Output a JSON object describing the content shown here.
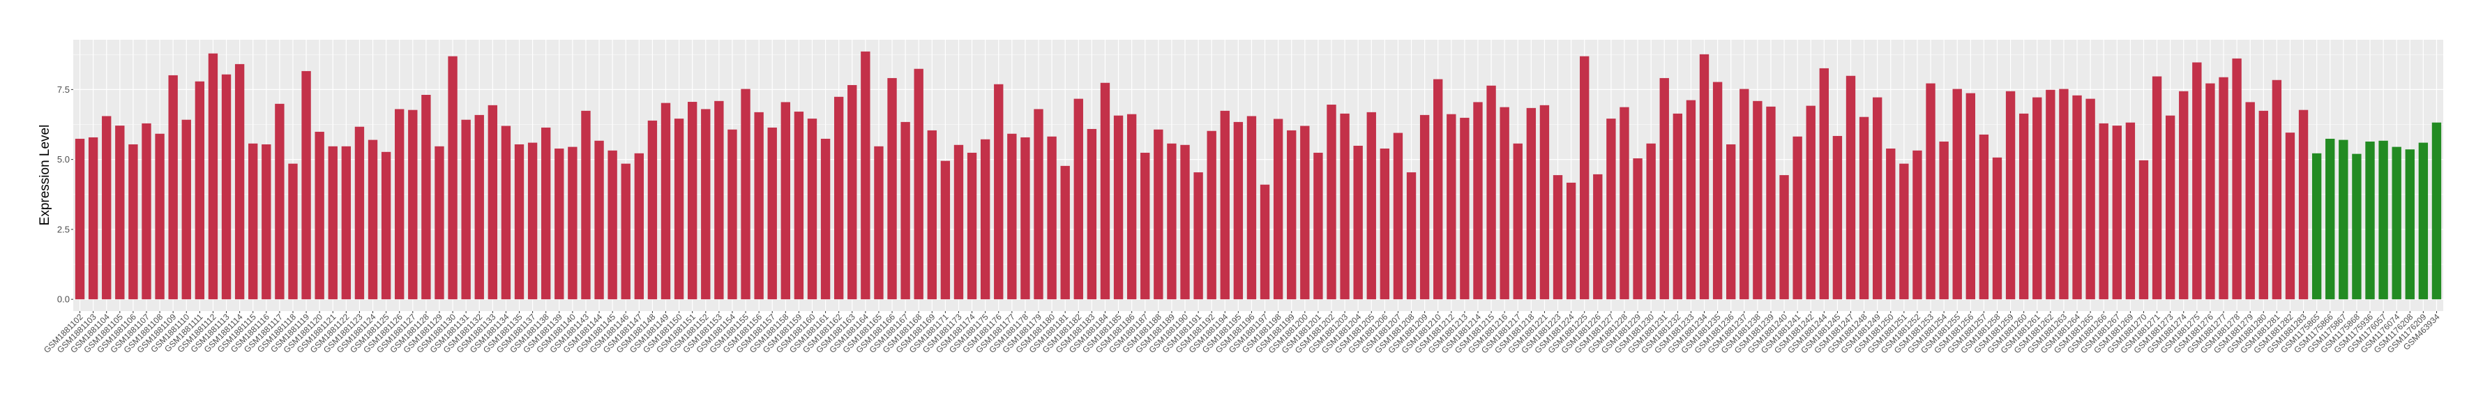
{
  "chart_data": {
    "type": "bar",
    "title": "",
    "xlabel": "",
    "ylabel": "Expression Level",
    "ylim": [
      -0.42,
      9.28
    ],
    "yticks": [
      0.0,
      2.5,
      5.0,
      7.5
    ],
    "ytick_labels": [
      "0.0",
      "2.5",
      "5.0",
      "7.5"
    ],
    "grid": true,
    "legend": "none",
    "colors": {
      "group1": "#C33149",
      "group2": "#228B22",
      "panel": "#EBEBEB",
      "gridline": "#FFFFFF"
    },
    "categories": [
      "GSM1881102",
      "GSM1881103",
      "GSM1881104",
      "GSM1881105",
      "GSM1881106",
      "GSM1881107",
      "GSM1881108",
      "GSM1881109",
      "GSM1881110",
      "GSM1881111",
      "GSM1881112",
      "GSM1881113",
      "GSM1881114",
      "GSM1881115",
      "GSM1881116",
      "GSM1881117",
      "GSM1881118",
      "GSM1881119",
      "GSM1881120",
      "GSM1881121",
      "GSM1881122",
      "GSM1881123",
      "GSM1881124",
      "GSM1881125",
      "GSM1881126",
      "GSM1881127",
      "GSM1881128",
      "GSM1881129",
      "GSM1881130",
      "GSM1881131",
      "GSM1881132",
      "GSM1881133",
      "GSM1881134",
      "GSM1881135",
      "GSM1881137",
      "GSM1881138",
      "GSM1881139",
      "GSM1881140",
      "GSM1881143",
      "GSM1881144",
      "GSM1881145",
      "GSM1881146",
      "GSM1881147",
      "GSM1881148",
      "GSM1881149",
      "GSM1881150",
      "GSM1881151",
      "GSM1881152",
      "GSM1881153",
      "GSM1881154",
      "GSM1881155",
      "GSM1881156",
      "GSM1881157",
      "GSM1881158",
      "GSM1881159",
      "GSM1881160",
      "GSM1881161",
      "GSM1881162",
      "GSM1881163",
      "GSM1881164",
      "GSM1881165",
      "GSM1881166",
      "GSM1881167",
      "GSM1881168",
      "GSM1881169",
      "GSM1881171",
      "GSM1881173",
      "GSM1881174",
      "GSM1881175",
      "GSM1881176",
      "GSM1881177",
      "GSM1881178",
      "GSM1881179",
      "GSM1881180",
      "GSM1881181",
      "GSM1881182",
      "GSM1881183",
      "GSM1881184",
      "GSM1881185",
      "GSM1881186",
      "GSM1881187",
      "GSM1881188",
      "GSM1881189",
      "GSM1881190",
      "GSM1881191",
      "GSM1881192",
      "GSM1881194",
      "GSM1881195",
      "GSM1881196",
      "GSM1881197",
      "GSM1881198",
      "GSM1881199",
      "GSM1881200",
      "GSM1881201",
      "GSM1881202",
      "GSM1881203",
      "GSM1881204",
      "GSM1881205",
      "GSM1881206",
      "GSM1881207",
      "GSM1881208",
      "GSM1881209",
      "GSM1881210",
      "GSM1881212",
      "GSM1881213",
      "GSM1881214",
      "GSM1881215",
      "GSM1881216",
      "GSM1881217",
      "GSM1881218",
      "GSM1881221",
      "GSM1881223",
      "GSM1881224",
      "GSM1881225",
      "GSM1881226",
      "GSM1881227",
      "GSM1881228",
      "GSM1881229",
      "GSM1881230",
      "GSM1881231",
      "GSM1881232",
      "GSM1881233",
      "GSM1881234",
      "GSM1881235",
      "GSM1881236",
      "GSM1881237",
      "GSM1881238",
      "GSM1881239",
      "GSM1881240",
      "GSM1881241",
      "GSM1881242",
      "GSM1881244",
      "GSM1881245",
      "GSM1881247",
      "GSM1881248",
      "GSM1881249",
      "GSM1881250",
      "GSM1881251",
      "GSM1881252",
      "GSM1881253",
      "GSM1881254",
      "GSM1881255",
      "GSM1881256",
      "GSM1881257",
      "GSM1881258",
      "GSM1881259",
      "GSM1881260",
      "GSM1881261",
      "GSM1881262",
      "GSM1881263",
      "GSM1881264",
      "GSM1881265",
      "GSM1881266",
      "GSM1881267",
      "GSM1881269",
      "GSM1881270",
      "GSM1881271",
      "GSM1881273",
      "GSM1881274",
      "GSM1881275",
      "GSM1881276",
      "GSM1881277",
      "GSM1881278",
      "GSM1881279",
      "GSM1881280",
      "GSM1881281",
      "GSM1881282",
      "GSM1881283",
      "GSM1175865",
      "GSM1175866",
      "GSM1175867",
      "GSM1175868",
      "GSM1175936",
      "GSM1176057",
      "GSM1176074",
      "GSM1176208",
      "GSM1176209",
      "GSM463934"
    ],
    "values": [
      5.74,
      5.79,
      6.55,
      6.21,
      5.54,
      6.29,
      5.92,
      8.01,
      6.42,
      7.79,
      8.79,
      8.04,
      8.41,
      5.57,
      5.54,
      6.99,
      4.85,
      8.16,
      5.99,
      5.47,
      5.47,
      6.17,
      5.7,
      5.27,
      6.8,
      6.77,
      7.31,
      5.47,
      8.69,
      6.42,
      6.59,
      6.94,
      6.2,
      5.54,
      5.6,
      6.14,
      5.39,
      5.45,
      6.74,
      5.67,
      5.32,
      4.85,
      5.22,
      6.39,
      7.02,
      6.46,
      7.06,
      6.8,
      7.09,
      6.07,
      7.52,
      6.69,
      6.14,
      7.05,
      6.71,
      6.46,
      5.74,
      7.24,
      7.66,
      8.86,
      5.47,
      7.91,
      6.34,
      8.24,
      6.04,
      4.95,
      5.52,
      5.24,
      5.72,
      7.69,
      5.92,
      5.79,
      6.8,
      5.82,
      4.77,
      7.17,
      6.09,
      7.74,
      6.57,
      6.62,
      5.24,
      6.07,
      5.57,
      5.52,
      4.54,
      6.02,
      6.74,
      6.34,
      6.55,
      4.1,
      6.45,
      6.04,
      6.2,
      5.24,
      6.96,
      6.64,
      5.49,
      6.69,
      5.39,
      5.95,
      4.54,
      6.59,
      7.87,
      6.62,
      6.49,
      7.05,
      7.64,
      6.87,
      5.57,
      6.84,
      6.94,
      4.44,
      4.17,
      8.69,
      4.47,
      6.46,
      6.87,
      5.04,
      5.57,
      7.91,
      6.64,
      7.12,
      8.76,
      7.77,
      5.54,
      7.52,
      7.09,
      6.89,
      4.44,
      5.82,
      6.92,
      8.26,
      5.84,
      7.99,
      6.52,
      7.22,
      5.39,
      4.85,
      5.32,
      7.72,
      5.64,
      7.52,
      7.37,
      5.89,
      5.07,
      7.44,
      6.64,
      7.22,
      7.49,
      7.52,
      7.29,
      7.17,
      6.29,
      6.21,
      6.32,
      4.97,
      7.97,
      6.57,
      7.44,
      8.47,
      7.72,
      7.94,
      8.61,
      7.05,
      6.74,
      7.84,
      5.96,
      6.77,
      5.22,
      5.74,
      5.7,
      5.2,
      5.64,
      5.67,
      5.45,
      5.36,
      5.6,
      6.32
    ],
    "groups": [
      {
        "color_key": "group1",
        "count": 168
      },
      {
        "color_key": "group2",
        "count": 10
      }
    ]
  }
}
